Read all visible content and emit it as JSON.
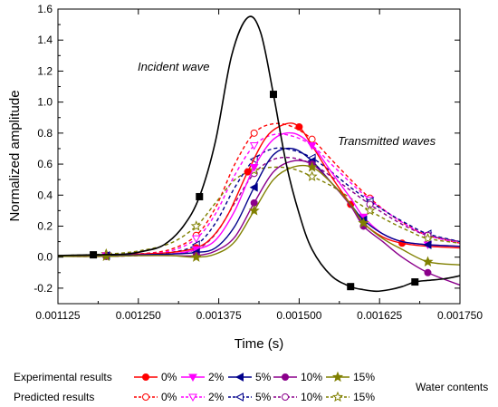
{
  "chart_data": {
    "type": "line",
    "xlabel": "Time (s)",
    "ylabel": "Normalized amplitude",
    "xlim": [
      0.001125,
      0.00175
    ],
    "ylim": [
      -0.3,
      1.6
    ],
    "x_ticks": [
      "0.001125",
      "0.001250",
      "0.001375",
      "0.001500",
      "0.001625",
      "0.001750"
    ],
    "y_ticks": [
      "-0.2",
      "0.0",
      "0.2",
      "0.4",
      "0.6",
      "0.8",
      "1.0",
      "1.2",
      "1.4",
      "1.6"
    ],
    "annotations": {
      "incident": "Incident wave",
      "transmitted": "Transmitted waves"
    },
    "legend": {
      "row1_label": "Experimental results",
      "row2_label": "Predicted results",
      "side_label": "Water contents",
      "entries": [
        "0%",
        "2%",
        "5%",
        "10%",
        "15%"
      ]
    },
    "colors": {
      "incident": "#000000",
      "0%": "#ff0000",
      "2%": "#ff00ff",
      "5%": "#00008b",
      "10%": "#8b008b",
      "15%": "#808000"
    },
    "series": [
      {
        "name": "Incident wave",
        "type": "experimental",
        "color": "#000000",
        "marker": "square",
        "x": [
          0.001125,
          0.00118,
          0.00123,
          0.00126,
          0.00129,
          0.00132,
          0.001345,
          0.00137,
          0.001395,
          0.00142,
          0.00144,
          0.00146,
          0.00148,
          0.0015,
          0.00152,
          0.00155,
          0.00158,
          0.0016,
          0.00162,
          0.00164,
          0.00166,
          0.00168,
          0.0017,
          0.001725,
          0.00175
        ],
        "y": [
          0.01,
          0.015,
          0.02,
          0.04,
          0.08,
          0.2,
          0.39,
          0.75,
          1.3,
          1.545,
          1.45,
          1.05,
          0.6,
          0.28,
          0.05,
          -0.12,
          -0.19,
          -0.21,
          -0.22,
          -0.21,
          -0.19,
          -0.16,
          -0.15,
          -0.14,
          -0.12
        ]
      },
      {
        "name": "0%",
        "type": "experimental",
        "color": "#ff0000",
        "marker": "circle",
        "x": [
          0.001125,
          0.0012,
          0.00125,
          0.0013,
          0.00134,
          0.001365,
          0.00139,
          0.00142,
          0.00145,
          0.00148,
          0.0015,
          0.00152,
          0.00155,
          0.00158,
          0.0016,
          0.00163,
          0.00166,
          0.0017,
          0.00175
        ],
        "y": [
          0.005,
          0.01,
          0.02,
          0.03,
          0.06,
          0.13,
          0.28,
          0.55,
          0.78,
          0.86,
          0.84,
          0.72,
          0.52,
          0.34,
          0.22,
          0.13,
          0.09,
          0.07,
          0.06
        ]
      },
      {
        "name": "0%",
        "type": "predicted",
        "color": "#ff0000",
        "marker": "circle-open",
        "x": [
          0.001125,
          0.0012,
          0.00125,
          0.0013,
          0.00134,
          0.00137,
          0.0014,
          0.00143,
          0.00146,
          0.00149,
          0.00152,
          0.00155,
          0.00158,
          0.00161,
          0.00164,
          0.00167,
          0.0017,
          0.00175
        ],
        "y": [
          0.005,
          0.01,
          0.02,
          0.05,
          0.14,
          0.32,
          0.6,
          0.8,
          0.86,
          0.84,
          0.76,
          0.63,
          0.5,
          0.38,
          0.28,
          0.2,
          0.14,
          0.09
        ]
      },
      {
        "name": "2%",
        "type": "experimental",
        "color": "#ff00ff",
        "marker": "triangle-down",
        "x": [
          0.001125,
          0.0012,
          0.00125,
          0.0013,
          0.00134,
          0.00137,
          0.0014,
          0.00143,
          0.00146,
          0.00149,
          0.00152,
          0.00155,
          0.00158,
          0.0016,
          0.00163,
          0.00166,
          0.0017,
          0.00175
        ],
        "y": [
          0.005,
          0.01,
          0.015,
          0.02,
          0.05,
          0.11,
          0.3,
          0.58,
          0.76,
          0.8,
          0.72,
          0.55,
          0.38,
          0.26,
          0.15,
          0.1,
          0.08,
          0.07
        ]
      },
      {
        "name": "2%",
        "type": "predicted",
        "color": "#ff00ff",
        "marker": "triangle-down-open",
        "x": [
          0.001125,
          0.0012,
          0.00125,
          0.0013,
          0.00134,
          0.00137,
          0.0014,
          0.00143,
          0.00146,
          0.00149,
          0.00152,
          0.00155,
          0.00158,
          0.00161,
          0.00164,
          0.00167,
          0.0017,
          0.00175
        ],
        "y": [
          0.005,
          0.01,
          0.02,
          0.04,
          0.12,
          0.28,
          0.53,
          0.72,
          0.79,
          0.78,
          0.72,
          0.6,
          0.48,
          0.37,
          0.28,
          0.2,
          0.14,
          0.09
        ]
      },
      {
        "name": "5%",
        "type": "experimental",
        "color": "#00008b",
        "marker": "triangle-left",
        "x": [
          0.001125,
          0.0012,
          0.00125,
          0.0013,
          0.00134,
          0.00137,
          0.0014,
          0.00143,
          0.00146,
          0.00149,
          0.00152,
          0.00155,
          0.00158,
          0.0016,
          0.00163,
          0.00166,
          0.0017,
          0.00175
        ],
        "y": [
          0.005,
          0.01,
          0.015,
          0.02,
          0.03,
          0.06,
          0.2,
          0.45,
          0.66,
          0.7,
          0.62,
          0.48,
          0.34,
          0.24,
          0.15,
          0.1,
          0.08,
          0.07
        ]
      },
      {
        "name": "5%",
        "type": "predicted",
        "color": "#00008b",
        "marker": "triangle-left-open",
        "x": [
          0.001125,
          0.0012,
          0.00125,
          0.0013,
          0.00134,
          0.00137,
          0.0014,
          0.00143,
          0.00146,
          0.00149,
          0.00152,
          0.00155,
          0.00158,
          0.00161,
          0.00164,
          0.00167,
          0.0017,
          0.00175
        ],
        "y": [
          0.005,
          0.01,
          0.015,
          0.03,
          0.08,
          0.22,
          0.45,
          0.63,
          0.7,
          0.69,
          0.64,
          0.55,
          0.45,
          0.36,
          0.28,
          0.21,
          0.15,
          0.1
        ]
      },
      {
        "name": "10%",
        "type": "experimental",
        "color": "#8b008b",
        "marker": "circle",
        "x": [
          0.001125,
          0.0012,
          0.00125,
          0.0013,
          0.00134,
          0.00137,
          0.0014,
          0.00143,
          0.00146,
          0.00149,
          0.00152,
          0.00155,
          0.00158,
          0.0016,
          0.00163,
          0.00166,
          0.0017,
          0.00175
        ],
        "y": [
          0.005,
          0.005,
          0.01,
          0.01,
          0.01,
          0.04,
          0.13,
          0.35,
          0.55,
          0.62,
          0.6,
          0.48,
          0.33,
          0.2,
          0.1,
          0.0,
          -0.1,
          -0.18
        ]
      },
      {
        "name": "10%",
        "type": "predicted",
        "color": "#8b008b",
        "marker": "circle-open",
        "x": [
          0.001125,
          0.0012,
          0.00125,
          0.0013,
          0.00134,
          0.00137,
          0.0014,
          0.00143,
          0.00146,
          0.00149,
          0.00152,
          0.00155,
          0.00158,
          0.00161,
          0.00164,
          0.00167,
          0.0017,
          0.00175
        ],
        "y": [
          0.005,
          0.005,
          0.01,
          0.02,
          0.05,
          0.15,
          0.35,
          0.54,
          0.63,
          0.64,
          0.6,
          0.52,
          0.43,
          0.34,
          0.26,
          0.19,
          0.14,
          0.1
        ]
      },
      {
        "name": "15%",
        "type": "experimental",
        "color": "#808000",
        "marker": "star",
        "x": [
          0.001125,
          0.0012,
          0.00125,
          0.0013,
          0.00134,
          0.00137,
          0.0014,
          0.00143,
          0.00146,
          0.00149,
          0.00152,
          0.00155,
          0.00158,
          0.0016,
          0.00163,
          0.00166,
          0.0017,
          0.00175
        ],
        "y": [
          0.005,
          0.005,
          0.01,
          0.01,
          0.0,
          0.02,
          0.1,
          0.3,
          0.5,
          0.58,
          0.58,
          0.48,
          0.34,
          0.22,
          0.12,
          0.05,
          -0.03,
          -0.05
        ]
      },
      {
        "name": "15%",
        "type": "predicted",
        "color": "#808000",
        "marker": "star-open",
        "x": [
          0.001125,
          0.0012,
          0.00125,
          0.0013,
          0.00134,
          0.00137,
          0.0014,
          0.00143,
          0.00146,
          0.00149,
          0.00152,
          0.00155,
          0.00158,
          0.00161,
          0.00164,
          0.00167,
          0.0017,
          0.00175
        ],
        "y": [
          0.01,
          0.02,
          0.04,
          0.09,
          0.2,
          0.35,
          0.5,
          0.56,
          0.58,
          0.57,
          0.52,
          0.46,
          0.38,
          0.3,
          0.23,
          0.17,
          0.12,
          0.09
        ]
      }
    ]
  }
}
